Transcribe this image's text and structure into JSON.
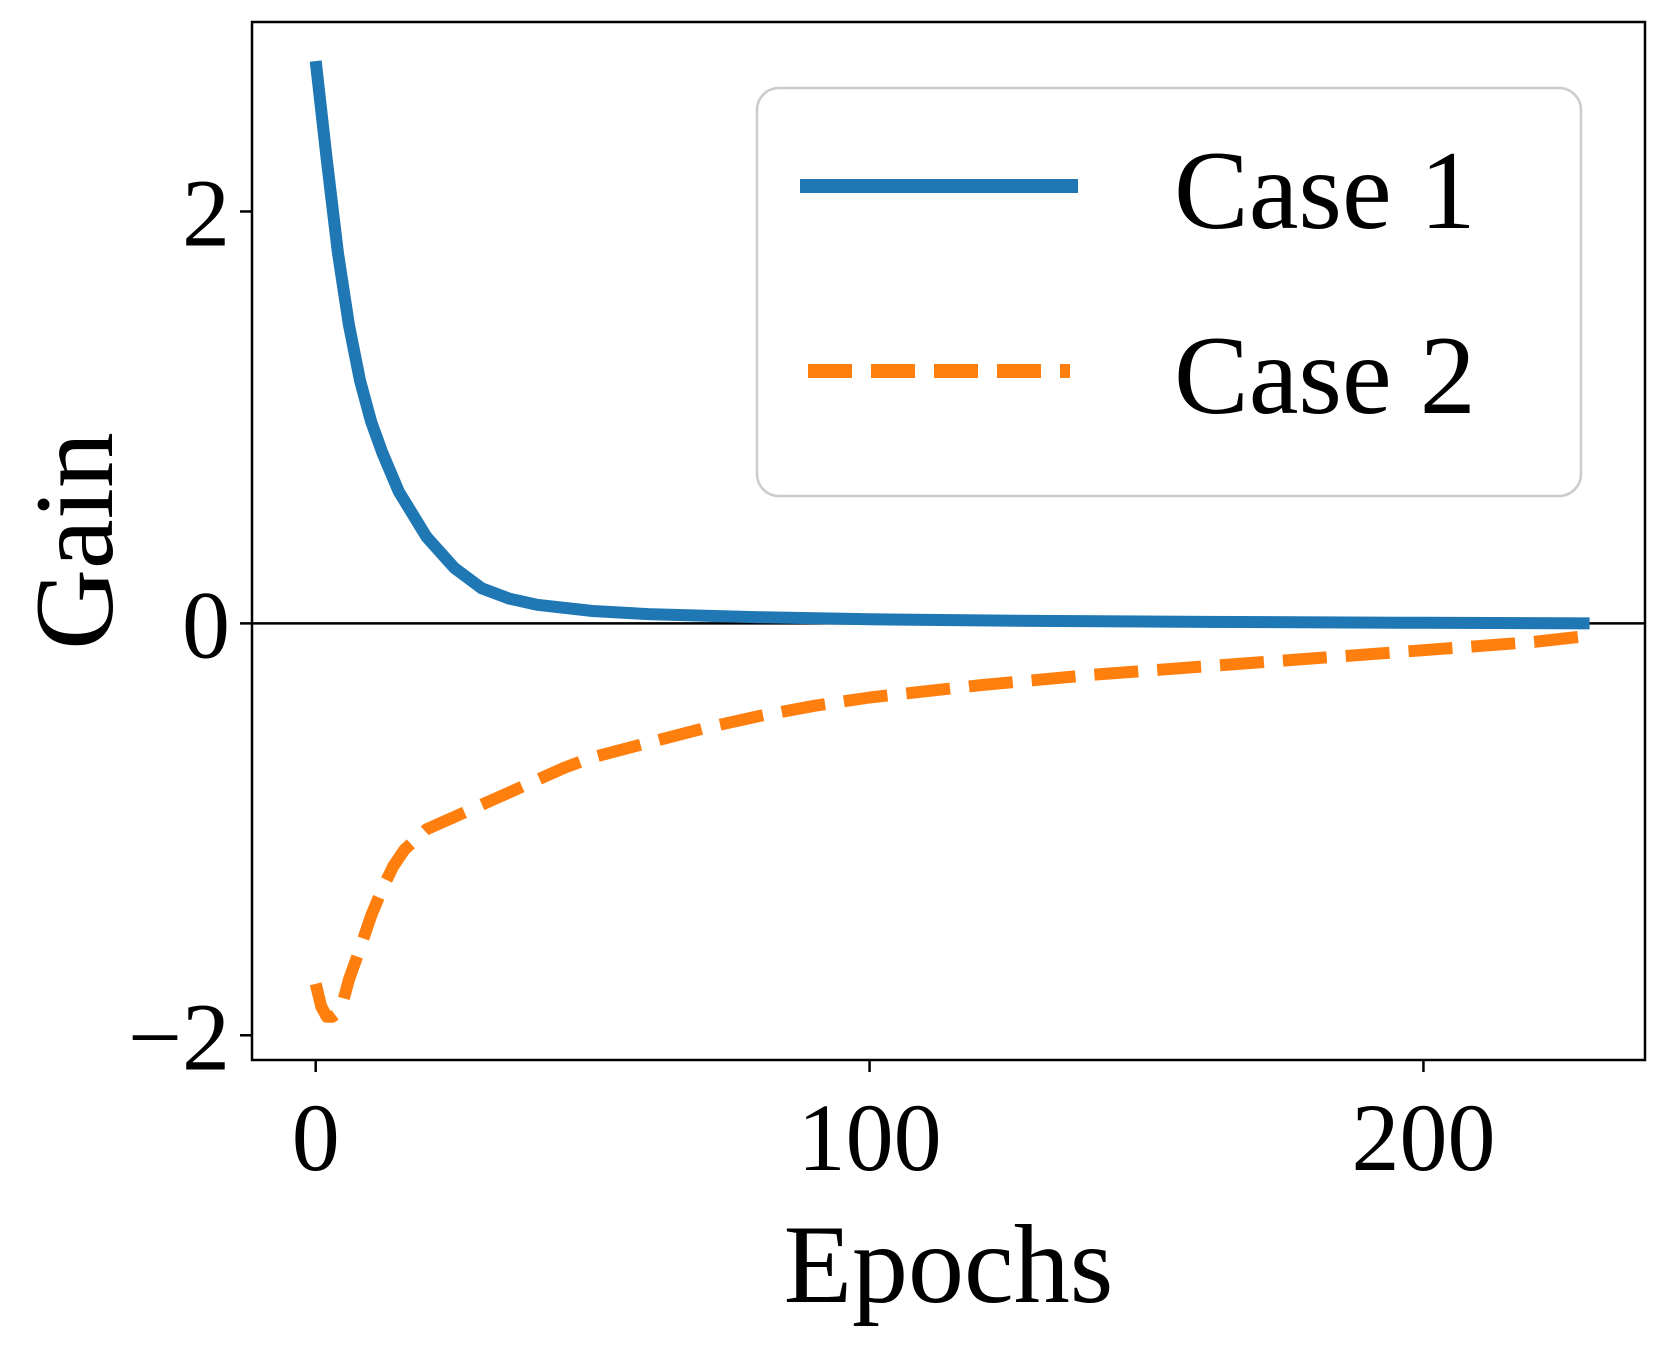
{
  "chart_data": {
    "type": "line",
    "title": "",
    "xlabel": "Epochs",
    "ylabel": "Gain",
    "xlim": [
      -11.5,
      240
    ],
    "ylim": [
      -2.12,
      2.92
    ],
    "xticks": [
      0,
      100,
      200
    ],
    "yticks": [
      -2,
      0,
      2
    ],
    "xtick_labels": [
      "0",
      "100",
      "200"
    ],
    "ytick_labels": [
      "−2",
      "0",
      "2"
    ],
    "grid": false,
    "reference_line_y": 0,
    "legend": {
      "position": "top-right"
    },
    "series": [
      {
        "name": "Case 1",
        "style": "solid",
        "color": "#1f77b4",
        "x": [
          0,
          2,
          4,
          6,
          8,
          10,
          12,
          15,
          20,
          25,
          30,
          35,
          40,
          50,
          60,
          80,
          100,
          130,
          160,
          200,
          230
        ],
        "y": [
          2.73,
          2.25,
          1.8,
          1.45,
          1.18,
          0.98,
          0.83,
          0.64,
          0.42,
          0.27,
          0.17,
          0.12,
          0.09,
          0.06,
          0.045,
          0.03,
          0.02,
          0.012,
          0.007,
          0.003,
          0.0
        ]
      },
      {
        "name": "Case 2",
        "style": "dashed",
        "color": "#ff7f0e",
        "x": [
          0,
          1,
          2,
          3,
          4,
          5,
          6,
          8,
          10,
          12,
          14,
          16,
          18,
          20,
          25,
          30,
          35,
          40,
          45,
          50,
          60,
          70,
          80,
          90,
          100,
          120,
          140,
          160,
          180,
          200,
          220,
          230
        ],
        "y": [
          -1.75,
          -1.86,
          -1.91,
          -1.91,
          -1.89,
          -1.83,
          -1.73,
          -1.58,
          -1.42,
          -1.29,
          -1.18,
          -1.1,
          -1.05,
          -1.0,
          -0.94,
          -0.88,
          -0.82,
          -0.76,
          -0.7,
          -0.65,
          -0.58,
          -0.51,
          -0.45,
          -0.4,
          -0.36,
          -0.3,
          -0.25,
          -0.21,
          -0.17,
          -0.13,
          -0.09,
          -0.06
        ]
      }
    ]
  }
}
